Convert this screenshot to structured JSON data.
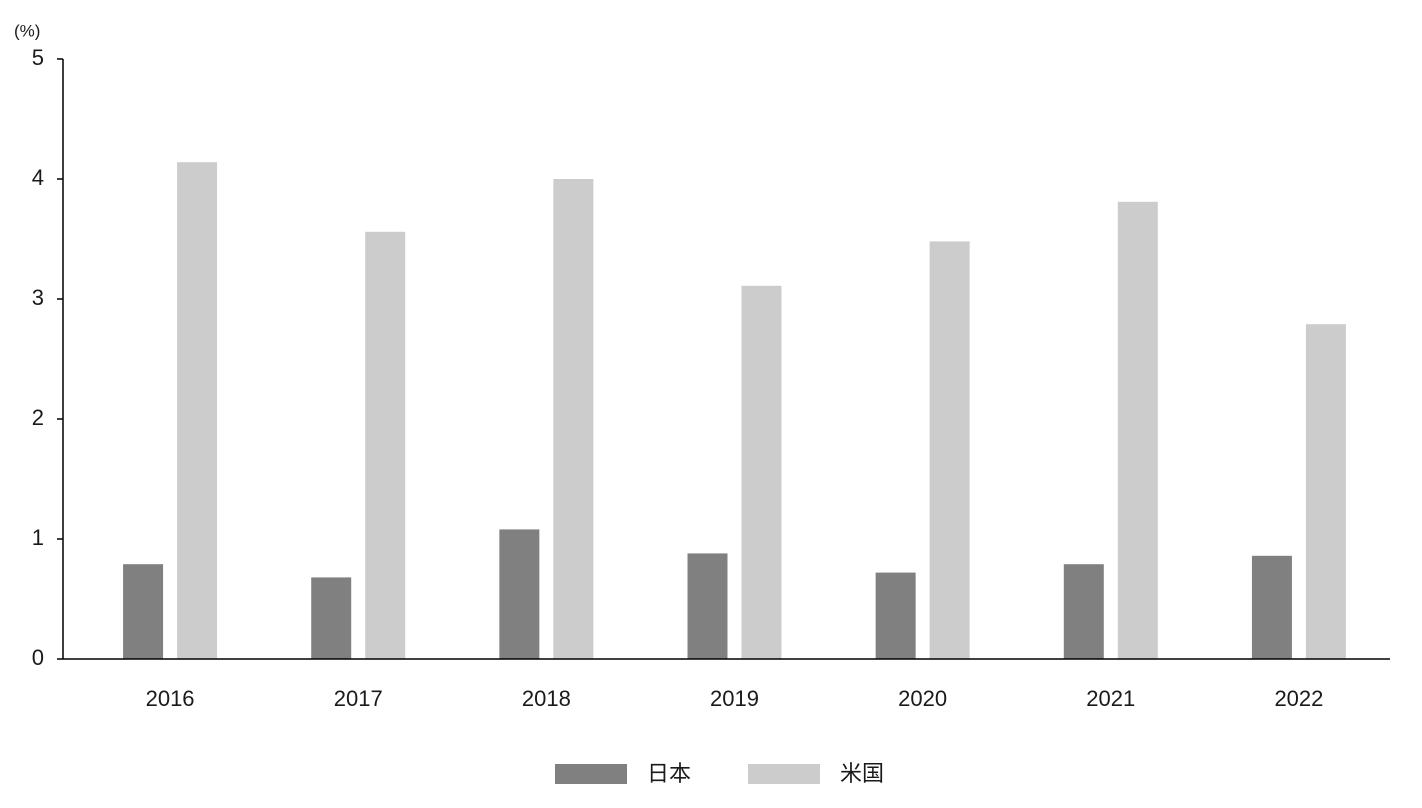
{
  "chart_data": {
    "type": "bar",
    "y_unit_label": "(%)",
    "categories": [
      "2016",
      "2017",
      "2018",
      "2019",
      "2020",
      "2021",
      "2022"
    ],
    "series": [
      {
        "name": "日本",
        "color": "#808080",
        "values": [
          0.79,
          0.68,
          1.08,
          0.88,
          0.72,
          0.79,
          0.86
        ]
      },
      {
        "name": "米国",
        "color": "#cccccc",
        "values": [
          4.14,
          3.56,
          4.0,
          3.11,
          3.48,
          3.81,
          2.79
        ]
      }
    ],
    "ylim": [
      0,
      5
    ],
    "yticks": [
      0,
      1,
      2,
      3,
      4,
      5
    ],
    "grid": false,
    "legend": "bottom"
  }
}
